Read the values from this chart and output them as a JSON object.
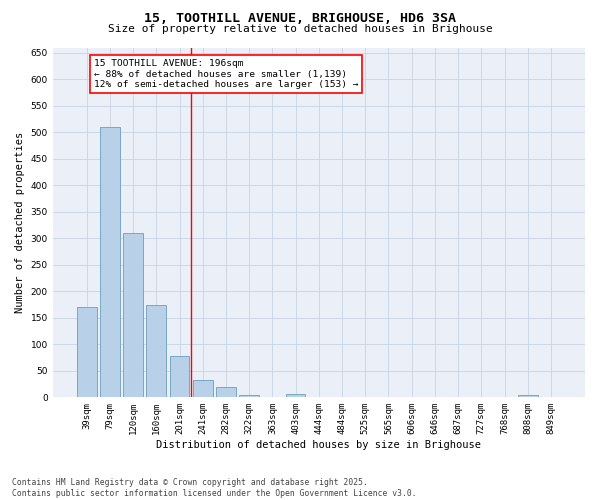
{
  "title": "15, TOOTHILL AVENUE, BRIGHOUSE, HD6 3SA",
  "subtitle": "Size of property relative to detached houses in Brighouse",
  "xlabel": "Distribution of detached houses by size in Brighouse",
  "ylabel": "Number of detached properties",
  "categories": [
    "39sqm",
    "79sqm",
    "120sqm",
    "160sqm",
    "201sqm",
    "241sqm",
    "282sqm",
    "322sqm",
    "363sqm",
    "403sqm",
    "444sqm",
    "484sqm",
    "525sqm",
    "565sqm",
    "606sqm",
    "646sqm",
    "687sqm",
    "727sqm",
    "768sqm",
    "808sqm",
    "849sqm"
  ],
  "values": [
    170,
    510,
    310,
    175,
    78,
    33,
    20,
    5,
    0,
    6,
    0,
    0,
    0,
    0,
    0,
    0,
    0,
    0,
    0,
    5,
    0
  ],
  "bar_color": "#b8d0e8",
  "bar_edge_color": "#6a9ec0",
  "vline_x": 4.5,
  "vline_color": "red",
  "annotation_line1": "15 TOOTHILL AVENUE: 196sqm",
  "annotation_line2": "← 88% of detached houses are smaller (1,139)",
  "annotation_line3": "12% of semi-detached houses are larger (153) →",
  "annotation_box_color": "red",
  "ylim": [
    0,
    660
  ],
  "yticks": [
    0,
    50,
    100,
    150,
    200,
    250,
    300,
    350,
    400,
    450,
    500,
    550,
    600,
    650
  ],
  "grid_color": "#c8d4e4",
  "bg_color": "#eaeff8",
  "footer": "Contains HM Land Registry data © Crown copyright and database right 2025.\nContains public sector information licensed under the Open Government Licence v3.0.",
  "title_fontsize": 9.5,
  "subtitle_fontsize": 8.0,
  "axis_label_fontsize": 7.5,
  "tick_fontsize": 6.5,
  "annotation_fontsize": 6.8,
  "footer_fontsize": 5.8
}
